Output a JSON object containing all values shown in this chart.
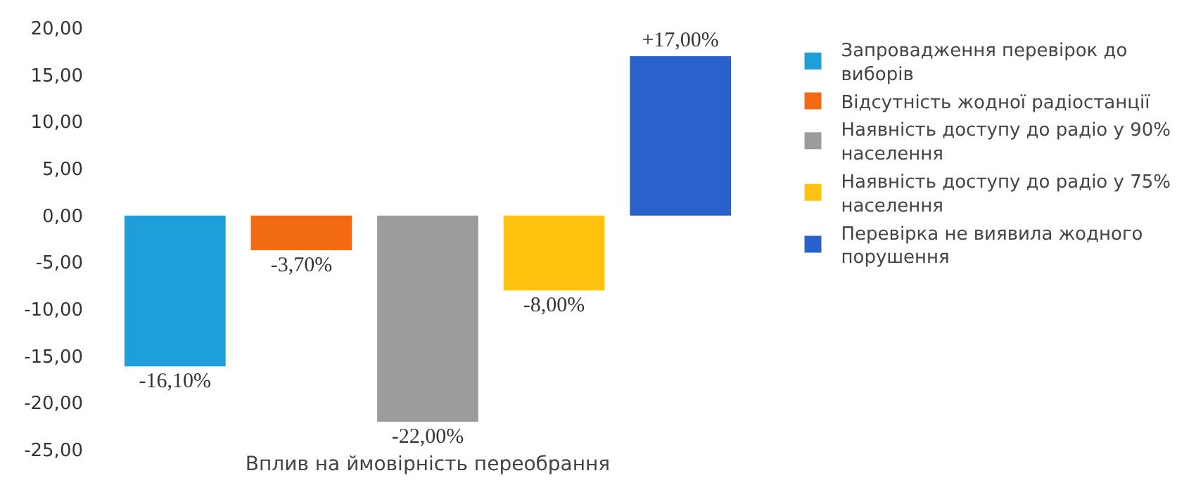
{
  "chart_data": {
    "type": "bar",
    "categories": [
      null
    ],
    "xlabel": "Вплив на ймовірність переобрання",
    "series": [
      {
        "name": "Запровадження перевірок до виборів",
        "color": "#1f9fd9",
        "values": [
          -16.1
        ],
        "value_labels": [
          "-16,10%"
        ]
      },
      {
        "name": "Відсутність жодної радіостанції",
        "color": "#f26b12",
        "values": [
          -3.7
        ],
        "value_labels": [
          "-3,70%"
        ]
      },
      {
        "name": "Наявність доступу до радіо у 90% населення",
        "color": "#9c9c9c",
        "values": [
          -22.0
        ],
        "value_labels": [
          "-22,00%"
        ]
      },
      {
        "name": "Наявність доступу до радіо у 75% населення",
        "color": "#ffc20e",
        "values": [
          -8.0
        ],
        "value_labels": [
          "-8,00%"
        ]
      },
      {
        "name": "Перевірка не виявила жодного порушення",
        "color": "#2a62cc",
        "values": [
          17.0
        ],
        "value_labels": [
          "+17,00%"
        ]
      }
    ],
    "ylim": [
      -25,
      20
    ],
    "yticks": [
      {
        "value": 20,
        "label": "20,00"
      },
      {
        "value": 15,
        "label": "15,00"
      },
      {
        "value": 10,
        "label": "10,00"
      },
      {
        "value": 5,
        "label": "5,00"
      },
      {
        "value": 0,
        "label": "0,00"
      },
      {
        "value": -5,
        "label": "-5,00"
      },
      {
        "value": -10,
        "label": "-10,00"
      },
      {
        "value": -15,
        "label": "-15,00"
      },
      {
        "value": -20,
        "label": "-20,00"
      },
      {
        "value": -25,
        "label": "-25,00"
      }
    ],
    "grid": false,
    "legend": "right"
  }
}
